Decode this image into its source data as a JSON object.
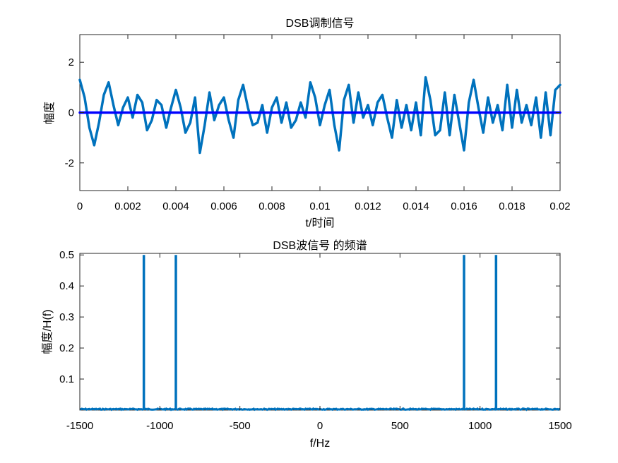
{
  "chart_data": [
    {
      "type": "line",
      "title": "DSB调制信号",
      "xlabel": "t/时间",
      "ylabel": "幅度",
      "xlim": [
        0,
        0.02
      ],
      "ylim": [
        -3.1,
        3.1
      ],
      "xticks": [
        0,
        0.002,
        0.004,
        0.006,
        0.008,
        0.01,
        0.012,
        0.014,
        0.016,
        0.018,
        0.02
      ],
      "xtick_labels": [
        "0",
        "0.002",
        "0.004",
        "0.006",
        "0.008",
        "0.01",
        "0.012",
        "0.014",
        "0.016",
        "0.018",
        "0.02"
      ],
      "yticks": [
        -2,
        0,
        2
      ],
      "ytick_labels": [
        "-2",
        "0",
        "2"
      ],
      "grid": false,
      "series": [
        {
          "color": "#0072BD",
          "x": [
            0,
            0.0002,
            0.0004,
            0.0006,
            0.0008,
            0.001,
            0.0012,
            0.0014,
            0.0016,
            0.0018,
            0.002,
            0.0022,
            0.0024,
            0.0026,
            0.0028,
            0.003,
            0.0032,
            0.0034,
            0.0036,
            0.0038,
            0.004,
            0.0042,
            0.0044,
            0.0046,
            0.0048,
            0.005,
            0.0052,
            0.0054,
            0.0056,
            0.0058,
            0.006,
            0.0062,
            0.0064,
            0.0066,
            0.0068,
            0.007,
            0.0072,
            0.0074,
            0.0076,
            0.0078,
            0.008,
            0.0082,
            0.0084,
            0.0086,
            0.0088,
            0.009,
            0.0092,
            0.0094,
            0.0096,
            0.0098,
            0.01,
            0.0102,
            0.0104,
            0.0106,
            0.0108,
            0.011,
            0.0112,
            0.0114,
            0.0116,
            0.0118,
            0.012,
            0.0122,
            0.0124,
            0.0126,
            0.0128,
            0.013,
            0.0132,
            0.0134,
            0.0136,
            0.0138,
            0.014,
            0.0142,
            0.0144,
            0.0146,
            0.0148,
            0.015,
            0.0152,
            0.0154,
            0.0156,
            0.0158,
            0.016,
            0.0162,
            0.0164,
            0.0166,
            0.0168,
            0.017,
            0.0172,
            0.0174,
            0.0176,
            0.0178,
            0.018,
            0.0182,
            0.0184,
            0.0186,
            0.0188,
            0.019,
            0.0192,
            0.0194,
            0.0196,
            0.0198,
            0.02
          ],
          "y": [
            1.3,
            0.6,
            -0.6,
            -1.3,
            -0.4,
            0.7,
            1.2,
            0.3,
            -0.5,
            0.2,
            0.6,
            -0.2,
            0.7,
            0.4,
            -0.7,
            -0.3,
            0.5,
            0.3,
            -0.6,
            0.2,
            0.9,
            0.2,
            -0.8,
            -0.4,
            0.6,
            -1.6,
            -0.5,
            0.8,
            -0.3,
            0.3,
            0.6,
            -0.3,
            -1.0,
            0.5,
            1.1,
            0.2,
            -0.5,
            -0.4,
            0.3,
            -0.8,
            0.2,
            0.6,
            -0.4,
            0.4,
            -0.6,
            -0.3,
            0.4,
            -0.2,
            1.2,
            0.6,
            -0.5,
            0.3,
            0.9,
            -0.5,
            -1.5,
            0.5,
            1.1,
            -0.4,
            0.8,
            -0.2,
            0.3,
            -0.5,
            0.4,
            0.7,
            -0.2,
            -1.0,
            0.5,
            -0.6,
            0.3,
            -0.7,
            0.4,
            -0.9,
            1.4,
            0.5,
            -0.9,
            -0.7,
            0.8,
            -0.9,
            0.7,
            -0.4,
            -1.5,
            0.4,
            1.3,
            0.2,
            -0.8,
            0.6,
            -0.4,
            0.3,
            -0.7,
            1.1,
            -0.6,
            0.9,
            -0.4,
            0.3,
            -0.5,
            0.6,
            -1.0,
            0.8,
            -0.9,
            0.9,
            1.1
          ]
        },
        {
          "color": "#0000FF",
          "x": [
            0,
            0.02
          ],
          "y": [
            0,
            0
          ]
        }
      ]
    },
    {
      "type": "line",
      "title": "DSB波信号 的频谱",
      "xlabel": "f/Hz",
      "ylabel": "幅度/H(f)",
      "xlim": [
        -1500,
        1500
      ],
      "ylim": [
        0,
        0.505
      ],
      "xticks": [
        -1500,
        -1000,
        -500,
        0,
        500,
        1000,
        1500
      ],
      "xtick_labels": [
        "-1500",
        "-1000",
        "-500",
        "0",
        "500",
        "1000",
        "1500"
      ],
      "yticks": [
        0.1,
        0.2,
        0.3,
        0.4,
        0.5
      ],
      "ytick_labels": [
        "0.1",
        "0.2",
        "0.3",
        "0.4",
        "0.5"
      ],
      "grid": false,
      "series": [
        {
          "color": "#0072BD",
          "baseline": 0.003,
          "peaks": [
            {
              "x": -1100,
              "y": 0.5
            },
            {
              "x": -900,
              "y": 0.5
            },
            {
              "x": 900,
              "y": 0.5
            },
            {
              "x": 1100,
              "y": 0.5
            }
          ]
        }
      ]
    }
  ]
}
